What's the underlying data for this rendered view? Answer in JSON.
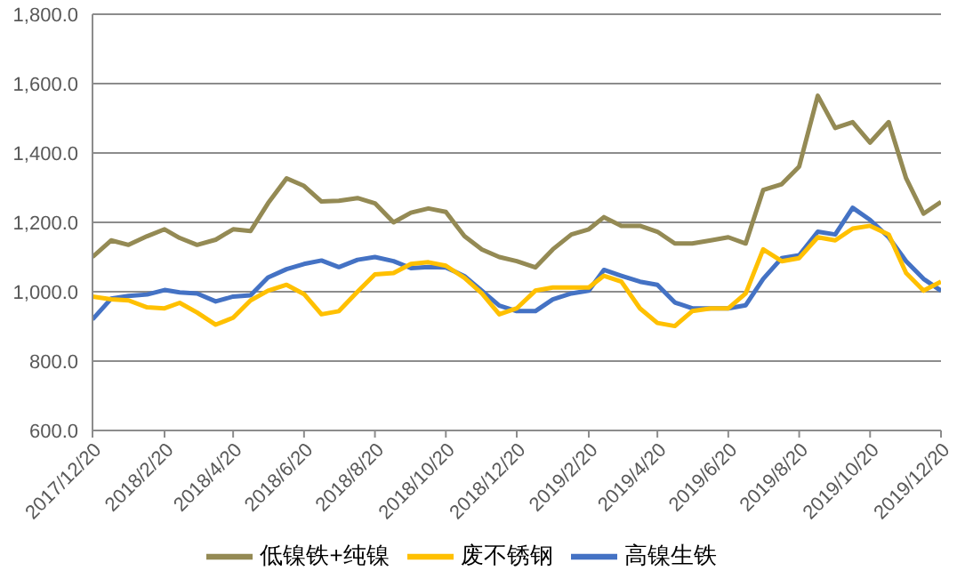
{
  "chart_data": {
    "type": "line",
    "x": [
      "2017-12-20",
      "2018-01-05",
      "2018-01-20",
      "2018-02-05",
      "2018-02-20",
      "2018-03-05",
      "2018-03-20",
      "2018-04-05",
      "2018-04-20",
      "2018-05-05",
      "2018-05-20",
      "2018-06-05",
      "2018-06-20",
      "2018-07-05",
      "2018-07-20",
      "2018-08-05",
      "2018-08-20",
      "2018-09-05",
      "2018-09-20",
      "2018-10-05",
      "2018-10-20",
      "2018-11-05",
      "2018-11-20",
      "2018-12-05",
      "2018-12-20",
      "2019-01-05",
      "2019-01-20",
      "2019-02-05",
      "2019-02-20",
      "2019-03-05",
      "2019-03-20",
      "2019-04-05",
      "2019-04-20",
      "2019-05-05",
      "2019-05-20",
      "2019-06-05",
      "2019-06-20",
      "2019-07-05",
      "2019-07-20",
      "2019-08-05",
      "2019-08-20",
      "2019-09-05",
      "2019-09-20",
      "2019-10-05",
      "2019-10-20",
      "2019-11-05",
      "2019-11-20",
      "2019-12-05",
      "2019-12-20"
    ],
    "series": [
      {
        "name": "高镍生铁",
        "color": "#4472c4",
        "values": [
          920,
          980,
          988,
          992,
          1005,
          998,
          995,
          972,
          986,
          990,
          1041,
          1065,
          1080,
          1090,
          1071,
          1092,
          1100,
          1088,
          1068,
          1071,
          1070,
          1045,
          1003,
          960,
          944,
          944,
          978,
          995,
          1003,
          1063,
          1046,
          1029,
          1020,
          969,
          952,
          952,
          952,
          961,
          1037,
          1097,
          1105,
          1173,
          1165,
          1242,
          1207,
          1157,
          1088,
          1037,
          1003
        ]
      },
      {
        "name": "废不锈钢",
        "color": "#ffc000",
        "values": [
          986,
          978,
          975,
          955,
          952,
          968,
          940,
          905,
          925,
          975,
          1003,
          1020,
          993,
          935,
          944,
          1000,
          1050,
          1054,
          1080,
          1085,
          1075,
          1040,
          995,
          935,
          952,
          1003,
          1012,
          1012,
          1012,
          1046,
          1029,
          952,
          910,
          901,
          944,
          952,
          952,
          995,
          1122,
          1088,
          1097,
          1157,
          1148,
          1182,
          1190,
          1165,
          1054,
          1003,
          1029
        ]
      },
      {
        "name": "低镍铁+纯镍",
        "color": "#948a54",
        "values": [
          1100,
          1148,
          1135,
          1160,
          1180,
          1155,
          1135,
          1150,
          1180,
          1175,
          1255,
          1327,
          1305,
          1260,
          1262,
          1270,
          1255,
          1200,
          1228,
          1240,
          1230,
          1160,
          1122,
          1100,
          1088,
          1070,
          1122,
          1165,
          1180,
          1215,
          1190,
          1190,
          1173,
          1139,
          1139,
          1148,
          1157,
          1139,
          1293,
          1310,
          1361,
          1565,
          1472,
          1489,
          1430,
          1489,
          1327,
          1225,
          1259
        ]
      }
    ],
    "xlim": [
      "2017-12-20",
      "2019-12-20"
    ],
    "xticks": [
      {
        "value": "2017-12-20",
        "label": "2017/12/20"
      },
      {
        "value": "2018-02-20",
        "label": "2018/2/20"
      },
      {
        "value": "2018-04-20",
        "label": "2018/4/20"
      },
      {
        "value": "2018-06-20",
        "label": "2018/6/20"
      },
      {
        "value": "2018-08-20",
        "label": "2018/8/20"
      },
      {
        "value": "2018-10-20",
        "label": "2018/10/20"
      },
      {
        "value": "2018-12-20",
        "label": "2018/12/20"
      },
      {
        "value": "2019-02-20",
        "label": "2019/2/20"
      },
      {
        "value": "2019-04-20",
        "label": "2019/4/20"
      },
      {
        "value": "2019-06-20",
        "label": "2019/6/20"
      },
      {
        "value": "2019-08-20",
        "label": "2019/8/20"
      },
      {
        "value": "2019-10-20",
        "label": "2019/10/20"
      },
      {
        "value": "2019-12-20",
        "label": "2019/12/20"
      }
    ],
    "ylim": [
      600,
      1800
    ],
    "yticks": [
      {
        "value": 600,
        "label": "600.0"
      },
      {
        "value": 800,
        "label": "800.0"
      },
      {
        "value": 1000,
        "label": "1,000.0"
      },
      {
        "value": 1200,
        "label": "1,200.0"
      },
      {
        "value": 1400,
        "label": "1,400.0"
      },
      {
        "value": 1600,
        "label": "1,600.0"
      },
      {
        "value": 1800,
        "label": "1,800.0"
      }
    ],
    "grid": "y",
    "legend": "bottom",
    "marker": "none",
    "line_style": "solid"
  }
}
